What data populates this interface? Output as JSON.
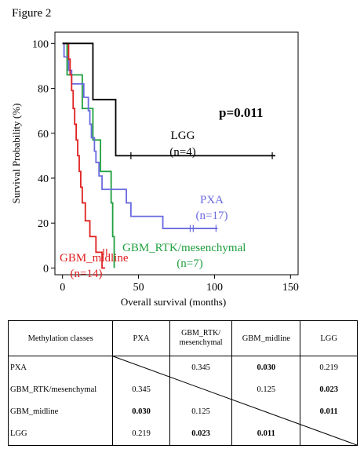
{
  "figure_title": "Figure 2",
  "chart_data": {
    "type": "line",
    "subtype": "kaplan-meier",
    "xlabel": "Overall survival (months)",
    "ylabel": "Survival Probability (%)",
    "xlim": [
      -5,
      155
    ],
    "ylim": [
      -3,
      105
    ],
    "xticks": [
      0,
      50,
      100,
      150
    ],
    "yticks": [
      0,
      20,
      40,
      60,
      80,
      100
    ],
    "annotation": "p=0.011",
    "grid": false,
    "series": [
      {
        "name": "LGG",
        "n_label": "(n=4)",
        "color": "#000000",
        "steps": [
          [
            0,
            100
          ],
          [
            20,
            100
          ],
          [
            20,
            75
          ],
          [
            35,
            75
          ],
          [
            35,
            50
          ],
          [
            140,
            50
          ]
        ],
        "censors": [
          [
            45,
            50
          ],
          [
            138,
            50
          ]
        ]
      },
      {
        "name": "PXA",
        "n_label": "(n=17)",
        "color": "#6a6ae0",
        "steps": [
          [
            0,
            100
          ],
          [
            1,
            100
          ],
          [
            1,
            94
          ],
          [
            4,
            94
          ],
          [
            4,
            88
          ],
          [
            6,
            88
          ],
          [
            6,
            82
          ],
          [
            14,
            82
          ],
          [
            14,
            76
          ],
          [
            17,
            76
          ],
          [
            17,
            70
          ],
          [
            18,
            70
          ],
          [
            18,
            64
          ],
          [
            19,
            64
          ],
          [
            19,
            58
          ],
          [
            21,
            58
          ],
          [
            21,
            52
          ],
          [
            22,
            52
          ],
          [
            22,
            47
          ],
          [
            24,
            47
          ],
          [
            24,
            41
          ],
          [
            26,
            41
          ],
          [
            26,
            35
          ],
          [
            42,
            35
          ],
          [
            42,
            29
          ],
          [
            45,
            29
          ],
          [
            45,
            23
          ],
          [
            66,
            23
          ],
          [
            66,
            17.6
          ],
          [
            102,
            17.6
          ]
        ],
        "censors": [
          [
            84,
            17.6
          ],
          [
            86,
            17.6
          ],
          [
            101,
            17.6
          ]
        ]
      },
      {
        "name": "GBM_RTK/mesenchymal",
        "n_label": "(n=7)",
        "color": "#20a040",
        "steps": [
          [
            0,
            100
          ],
          [
            3,
            100
          ],
          [
            3,
            86
          ],
          [
            13,
            86
          ],
          [
            13,
            71
          ],
          [
            20,
            71
          ],
          [
            20,
            57
          ],
          [
            25,
            57
          ],
          [
            25,
            43
          ],
          [
            32,
            43
          ],
          [
            32,
            29
          ],
          [
            33,
            29
          ],
          [
            33,
            14
          ],
          [
            34,
            14
          ],
          [
            34,
            0
          ]
        ],
        "censors": []
      },
      {
        "name": "GBM_midline",
        "n_label": "(n=14)",
        "color": "#e02020",
        "steps": [
          [
            0,
            100
          ],
          [
            4,
            100
          ],
          [
            4,
            93
          ],
          [
            5,
            93
          ],
          [
            5,
            86
          ],
          [
            6,
            86
          ],
          [
            6,
            79
          ],
          [
            7,
            79
          ],
          [
            7,
            71
          ],
          [
            8,
            71
          ],
          [
            8,
            64
          ],
          [
            9,
            64
          ],
          [
            9,
            57
          ],
          [
            10,
            57
          ],
          [
            10,
            50
          ],
          [
            11,
            50
          ],
          [
            11,
            43
          ],
          [
            12,
            43
          ],
          [
            12,
            36
          ],
          [
            13,
            36
          ],
          [
            13,
            29
          ],
          [
            15,
            29
          ],
          [
            15,
            21
          ],
          [
            18,
            21
          ],
          [
            18,
            14
          ],
          [
            22,
            14
          ],
          [
            22,
            7
          ],
          [
            26,
            7
          ],
          [
            26,
            0
          ],
          [
            28,
            0
          ]
        ],
        "censors": [
          [
            27,
            7
          ],
          [
            29,
            7
          ]
        ]
      }
    ]
  },
  "table": {
    "header": {
      "label": "Methylation classes",
      "cols": [
        "PXA",
        "GBM_RTK/\nmesenchymal",
        "GBM_midline",
        "LGG"
      ]
    },
    "rows": [
      {
        "label": "PXA",
        "cells": [
          "",
          "0.345",
          "0.030",
          "0.219"
        ],
        "bold": [
          false,
          false,
          true,
          false
        ]
      },
      {
        "label": "GBM_RTK/mesenchymal",
        "cells": [
          "0.345",
          "",
          "0.125",
          "0.023"
        ],
        "bold": [
          false,
          false,
          false,
          true
        ]
      },
      {
        "label": "GBM_midline",
        "cells": [
          "0.030",
          "0.125",
          "",
          "0.011"
        ],
        "bold": [
          true,
          false,
          false,
          true
        ]
      },
      {
        "label": "LGG",
        "cells": [
          "0.219",
          "0.023",
          "0.011",
          ""
        ],
        "bold": [
          false,
          true,
          true,
          false
        ]
      }
    ]
  }
}
